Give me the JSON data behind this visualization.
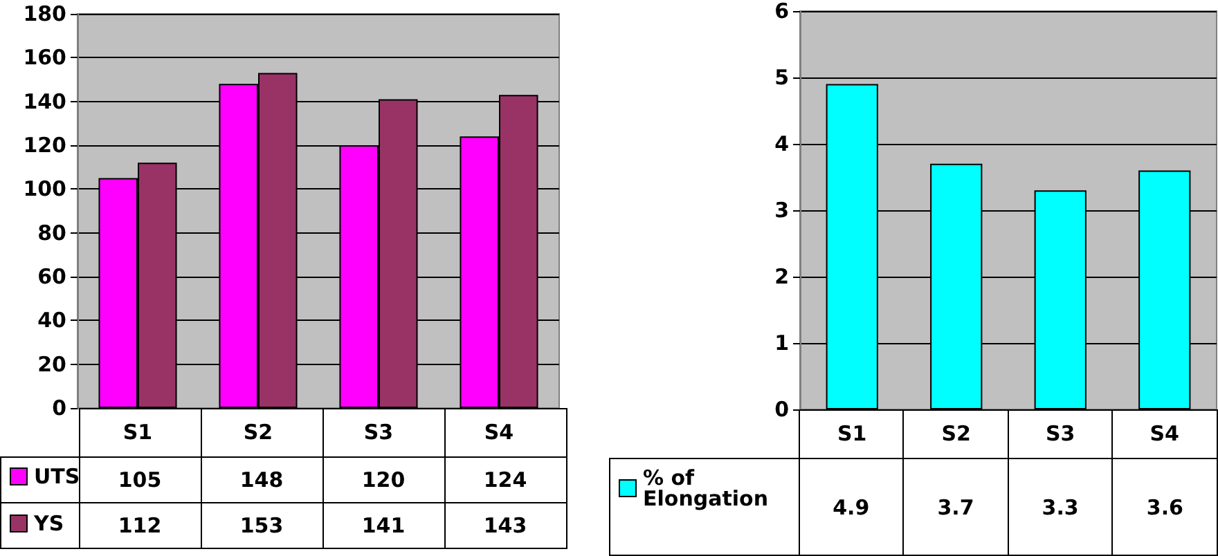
{
  "chart_data": [
    {
      "type": "bar",
      "categories": [
        "S1",
        "S2",
        "S3",
        "S4"
      ],
      "series": [
        {
          "name": "UTS",
          "color": "#ff00ff",
          "values": [
            105,
            148,
            120,
            124
          ]
        },
        {
          "name": "YS",
          "color": "#993366",
          "values": [
            112,
            153,
            141,
            143
          ]
        }
      ],
      "ylim": [
        0,
        180
      ],
      "yticks": [
        0,
        20,
        40,
        60,
        80,
        100,
        120,
        140,
        160,
        180
      ],
      "grid": "y",
      "legend": "bottom",
      "data_labels": true
    },
    {
      "type": "bar",
      "categories": [
        "S1",
        "S2",
        "S3",
        "S4"
      ],
      "series": [
        {
          "name": "% of Elongation",
          "color": "#00ffff",
          "values": [
            4.9,
            3.7,
            3.3,
            3.6
          ]
        }
      ],
      "ylim": [
        0,
        6
      ],
      "yticks": [
        0,
        1,
        2,
        3,
        4,
        5,
        6
      ],
      "grid": "y",
      "legend": "bottom",
      "data_labels": true
    }
  ]
}
